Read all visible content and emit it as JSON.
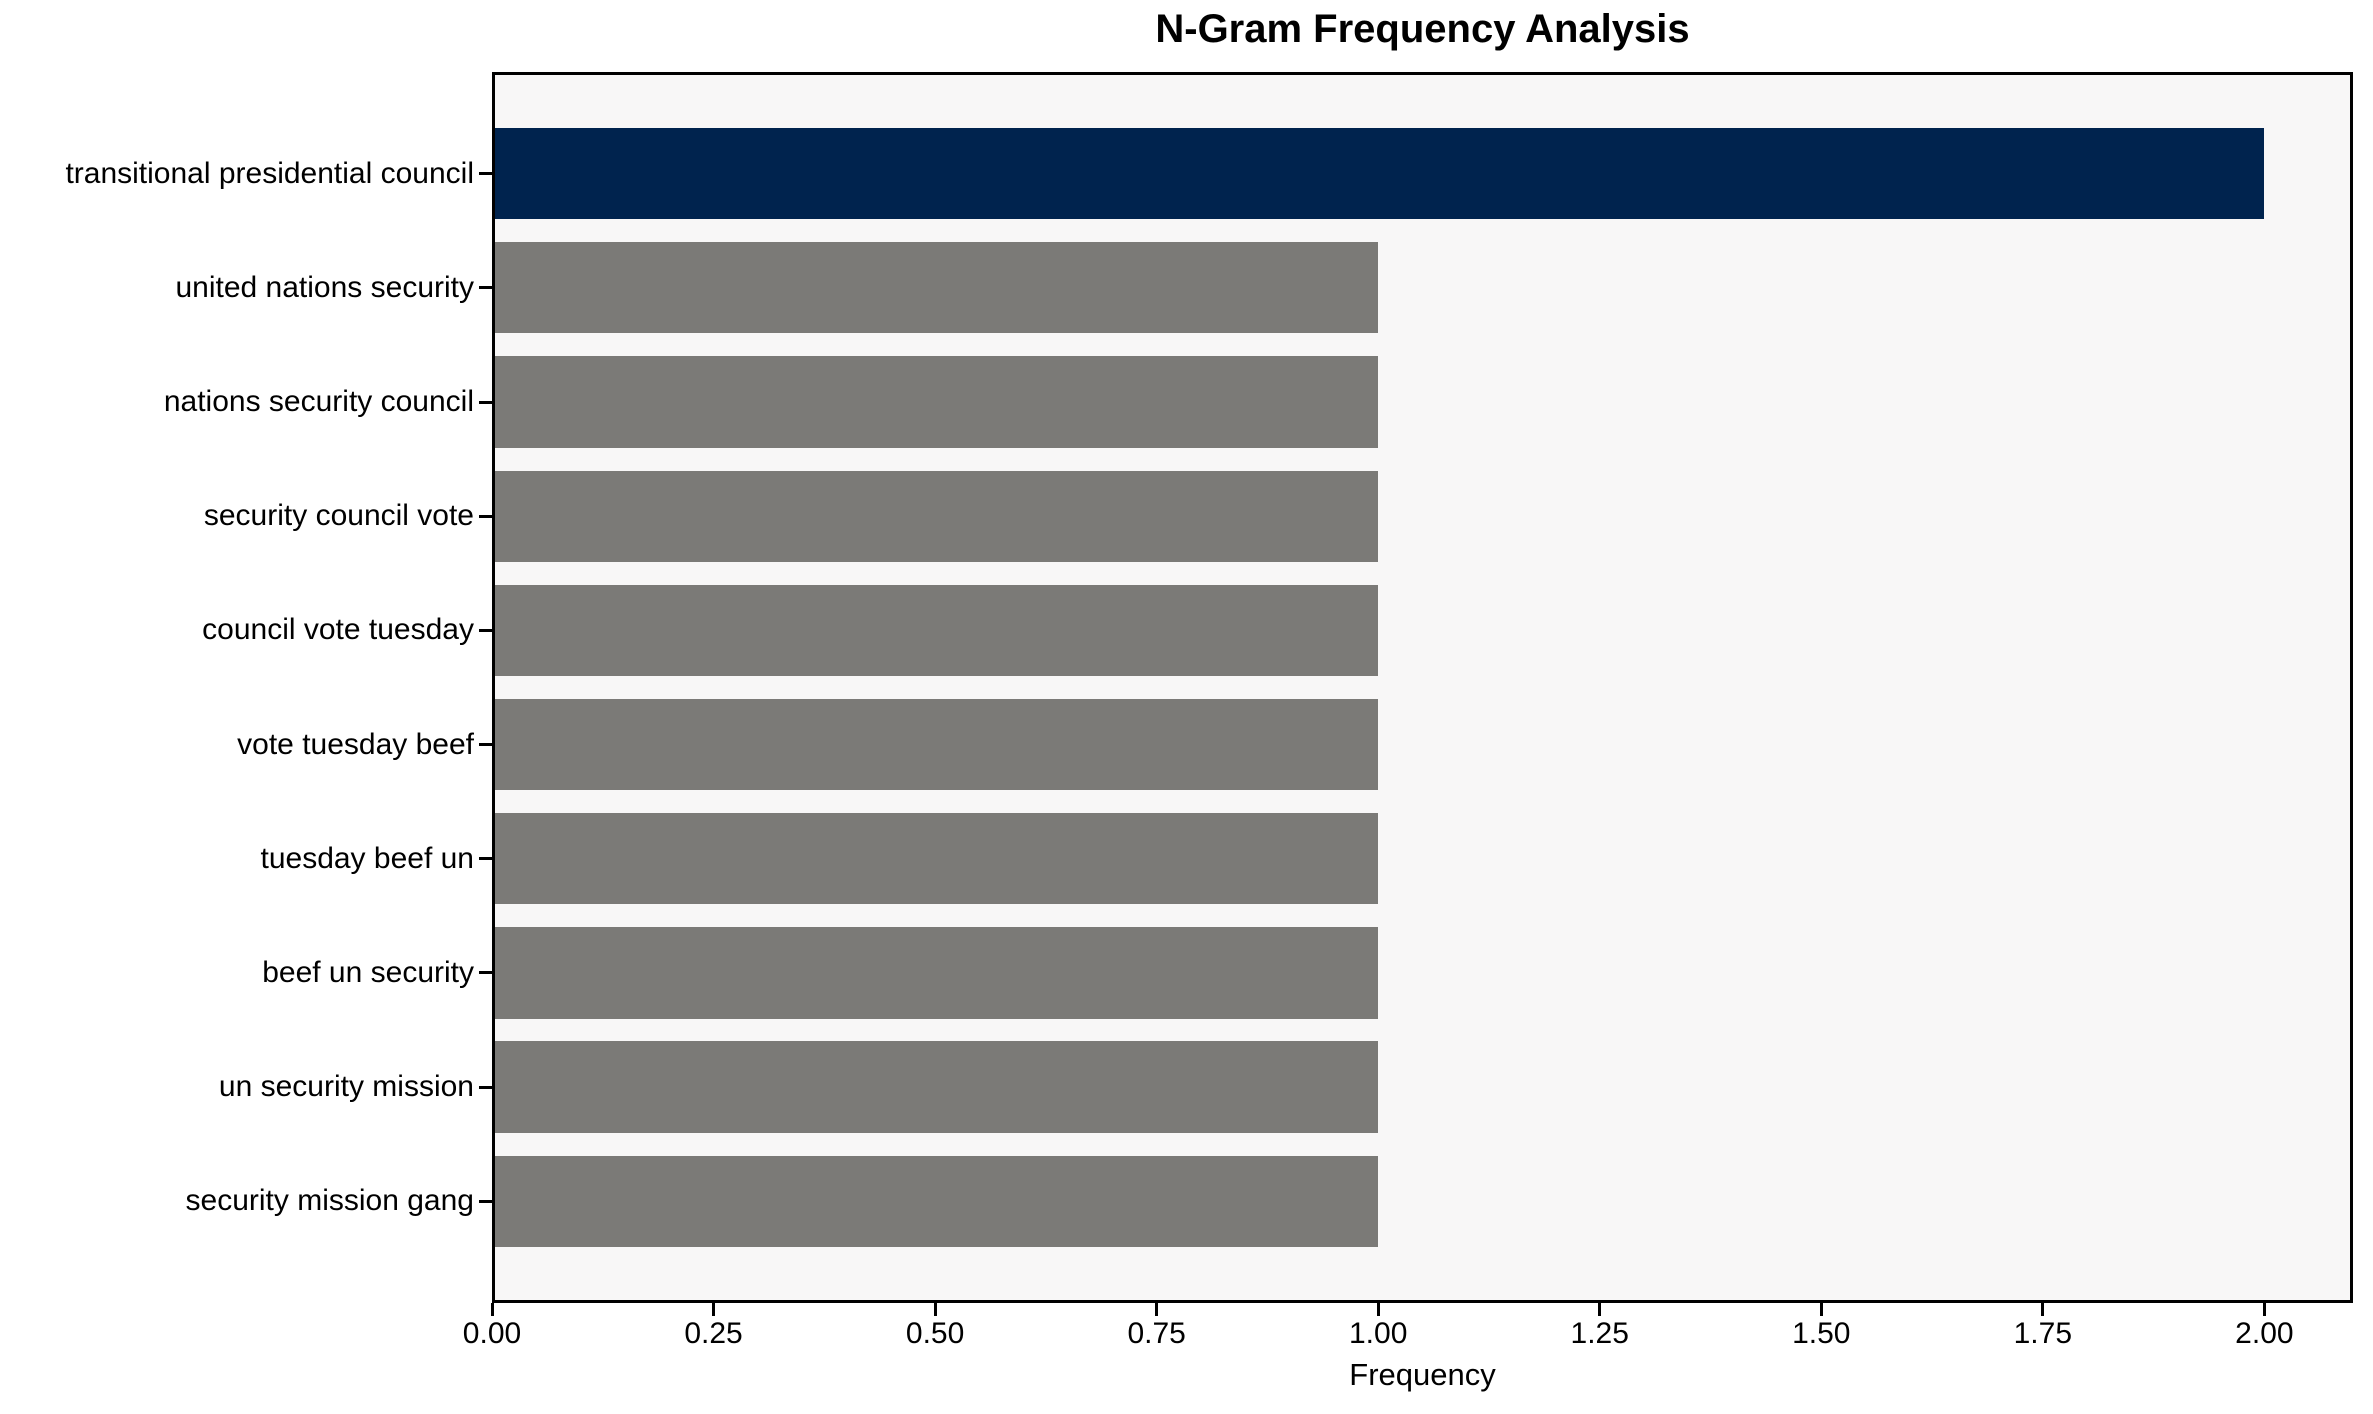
{
  "chart_data": {
    "type": "bar",
    "orientation": "horizontal",
    "title": "N-Gram Frequency Analysis",
    "xlabel": "Frequency",
    "ylabel": "",
    "categories": [
      "transitional presidential council",
      "united nations security",
      "nations security council",
      "security council vote",
      "council vote tuesday",
      "vote tuesday beef",
      "tuesday beef un",
      "beef un security",
      "un security mission",
      "security mission gang"
    ],
    "values": [
      2,
      1,
      1,
      1,
      1,
      1,
      1,
      1,
      1,
      1
    ],
    "xlim": [
      0,
      2.1
    ],
    "xticks": [
      0,
      0.25,
      0.5,
      0.75,
      1,
      1.25,
      1.5,
      1.75,
      2
    ],
    "xtick_labels": [
      "0.00",
      "0.25",
      "0.50",
      "0.75",
      "1.00",
      "1.25",
      "1.50",
      "1.75",
      "2.00"
    ],
    "grid": false,
    "legend": "none",
    "bar_colors": [
      "#00234e",
      "#7b7a77",
      "#7b7a77",
      "#7b7a77",
      "#7b7a77",
      "#7b7a77",
      "#7b7a77",
      "#7b7a77",
      "#7b7a77",
      "#7b7a77"
    ],
    "colors": {
      "highlight_bar": "#00234e",
      "default_bar": "#7b7a77",
      "plot_background": "#f8f7f7",
      "figure_background": "#ffffff",
      "spine": "#000000",
      "text": "#000000"
    }
  }
}
